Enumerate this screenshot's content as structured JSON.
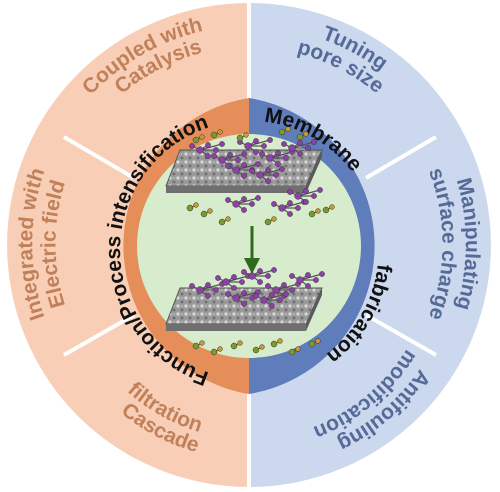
{
  "colors": {
    "outer_left": "#f8cfb6",
    "outer_right": "#cbd8ee",
    "inner_left": "#e58e5a",
    "inner_right": "#5f7cbb",
    "center": "#d6eccd",
    "text_left": "#c0805a",
    "text_right": "#556a98",
    "divider": "#ffffff",
    "arrow": "#2f6b1e"
  },
  "inner_labels": {
    "left": "Function/Process intensification",
    "right_top": "Membrane",
    "right_bottom": "fabrication"
  },
  "outer_labels": {
    "left_top": [
      "Coupled with",
      "Catalysis"
    ],
    "left_middle": [
      "Integrated with",
      "Electric field"
    ],
    "left_bottom": [
      "Cascade",
      "filtration"
    ],
    "right_top": [
      "Tuning",
      "pore size"
    ],
    "right_middle": [
      "Manipulating",
      "surface charge"
    ],
    "right_bottom": [
      "Antifouling",
      "modification"
    ]
  },
  "center_graphic": {
    "membranes": [
      "top-membrane",
      "bottom-membrane"
    ],
    "molecule_color": "#8e3fa8",
    "ion_color_a": "#7b9a2b",
    "ion_color_b": "#c79c2a"
  }
}
